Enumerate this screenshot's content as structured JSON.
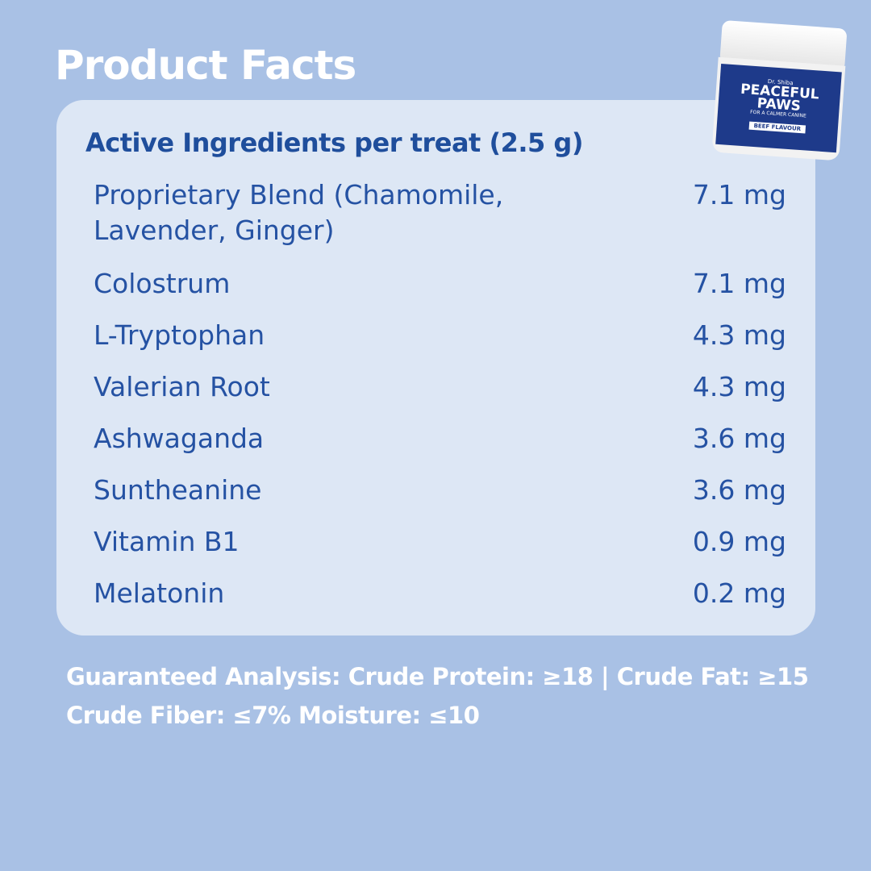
{
  "title": "Product Facts",
  "subtitle": "Active Ingredients per treat (2.5 g)",
  "ingredients": [
    {
      "name": "Proprietary Blend (Chamomile, Lavender, Ginger)",
      "amount": "7.1 mg"
    },
    {
      "name": "Colostrum",
      "amount": "7.1 mg"
    },
    {
      "name": "L-Tryptophan",
      "amount": "4.3 mg"
    },
    {
      "name": "Valerian Root",
      "amount": "4.3 mg"
    },
    {
      "name": "Ashwaganda",
      "amount": "3.6 mg"
    },
    {
      "name": "Suntheanine",
      "amount": "3.6 mg"
    },
    {
      "name": "Vitamin B1",
      "amount": "0.9 mg"
    },
    {
      "name": "Melatonin",
      "amount": "0.2 mg"
    }
  ],
  "analysis": {
    "line1": "Guaranteed Analysis: Crude Protein: ≥18 | Crude Fat: ≥15",
    "line2": "Crude Fiber: ≤7% Moisture: ≤10"
  },
  "product": {
    "brand": "Dr. Shiba",
    "name": "PEACEFUL PAWS",
    "tagline": "FOR A CALMER CANINE",
    "flavour": "BEEF FLAVOUR"
  }
}
